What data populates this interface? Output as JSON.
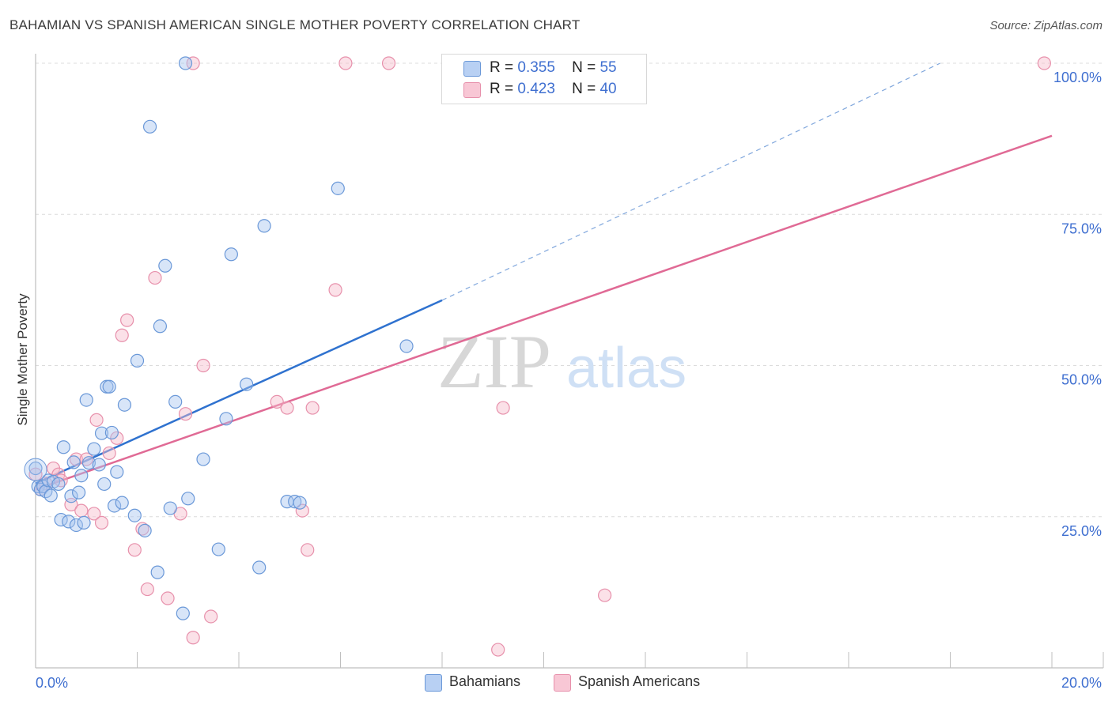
{
  "title": "BAHAMIAN VS SPANISH AMERICAN SINGLE MOTHER POVERTY CORRELATION CHART",
  "source": "Source: ZipAtlas.com",
  "watermark": {
    "zip": "ZIP",
    "atlas": "atlas"
  },
  "legend": {
    "r_label": "R =",
    "n_label": "N =",
    "rows": [
      {
        "r": "0.355",
        "n": "55"
      },
      {
        "r": "0.423",
        "n": "40"
      }
    ]
  },
  "colors": {
    "blue_fill": "#a9c6f0",
    "blue_stroke": "#6a98d8",
    "blue_line": "#2f72cf",
    "pink_fill": "#f6bccd",
    "pink_stroke": "#e790ab",
    "pink_line": "#e06a95",
    "axis_text": "#3f6fd0",
    "grid": "#dcdcdc"
  },
  "chart_data": {
    "type": "scatter",
    "title": "BAHAMIAN VS SPANISH AMERICAN SINGLE MOTHER POVERTY CORRELATION CHART",
    "xlabel": "",
    "ylabel": "Single Mother Poverty",
    "xlim": [
      0,
      20
    ],
    "ylim": [
      0,
      100
    ],
    "x_tick_labels": [
      "0.0%",
      "20.0%"
    ],
    "y_tick_labels": [
      "25.0%",
      "50.0%",
      "75.0%",
      "100.0%"
    ],
    "y_ticks": [
      25,
      50,
      75,
      100
    ],
    "grid": true,
    "legend_position": "top-center",
    "series": [
      {
        "name": "Bahamians",
        "r": 0.355,
        "n": 55,
        "trend": {
          "x0": 0,
          "y0": 30.5,
          "x1": 8.0,
          "y1": 60.8,
          "dashed_to_x": 17.8,
          "dashed_to_y": 100
        },
        "points": [
          [
            0.0,
            33.0
          ],
          [
            0.05,
            30.0
          ],
          [
            0.1,
            29.5
          ],
          [
            0.15,
            30.0
          ],
          [
            0.2,
            29.2
          ],
          [
            0.25,
            31.0
          ],
          [
            0.3,
            28.5
          ],
          [
            0.35,
            30.8
          ],
          [
            0.45,
            30.4
          ],
          [
            0.5,
            24.5
          ],
          [
            0.55,
            36.5
          ],
          [
            0.65,
            24.2
          ],
          [
            0.7,
            28.4
          ],
          [
            0.75,
            34.0
          ],
          [
            0.8,
            23.6
          ],
          [
            0.85,
            29.0
          ],
          [
            0.9,
            31.8
          ],
          [
            0.95,
            24.0
          ],
          [
            1.0,
            44.3
          ],
          [
            1.05,
            33.9
          ],
          [
            1.15,
            36.2
          ],
          [
            1.25,
            33.6
          ],
          [
            1.3,
            38.8
          ],
          [
            1.35,
            30.4
          ],
          [
            1.4,
            46.5
          ],
          [
            1.45,
            46.5
          ],
          [
            1.5,
            38.9
          ],
          [
            1.55,
            26.8
          ],
          [
            1.6,
            32.4
          ],
          [
            1.7,
            27.3
          ],
          [
            1.75,
            43.5
          ],
          [
            1.95,
            25.2
          ],
          [
            2.0,
            50.8
          ],
          [
            2.15,
            22.7
          ],
          [
            2.25,
            89.5
          ],
          [
            2.4,
            15.8
          ],
          [
            2.45,
            56.5
          ],
          [
            2.55,
            66.5
          ],
          [
            2.65,
            26.4
          ],
          [
            2.75,
            44.0
          ],
          [
            2.9,
            9.0
          ],
          [
            2.95,
            100.0
          ],
          [
            3.0,
            28.0
          ],
          [
            3.3,
            34.5
          ],
          [
            3.6,
            19.6
          ],
          [
            3.75,
            41.2
          ],
          [
            3.85,
            68.4
          ],
          [
            4.15,
            46.9
          ],
          [
            4.4,
            16.6
          ],
          [
            4.5,
            73.1
          ],
          [
            4.95,
            27.5
          ],
          [
            5.1,
            27.5
          ],
          [
            5.2,
            27.3
          ],
          [
            5.95,
            79.3
          ],
          [
            7.3,
            53.2
          ]
        ]
      },
      {
        "name": "Spanish Americans",
        "r": 0.423,
        "n": 40,
        "trend": {
          "x0": 0,
          "y0": 29.5,
          "x1": 20.0,
          "y1": 88.0
        },
        "points": [
          [
            0.0,
            32.0
          ],
          [
            0.1,
            29.5
          ],
          [
            0.2,
            30.5
          ],
          [
            0.35,
            33.0
          ],
          [
            0.45,
            32.0
          ],
          [
            0.5,
            31.0
          ],
          [
            0.7,
            27.0
          ],
          [
            0.8,
            34.5
          ],
          [
            0.9,
            26.0
          ],
          [
            1.0,
            34.5
          ],
          [
            1.15,
            25.5
          ],
          [
            1.2,
            41.0
          ],
          [
            1.3,
            24.0
          ],
          [
            1.45,
            35.5
          ],
          [
            1.6,
            38.0
          ],
          [
            1.7,
            55.0
          ],
          [
            1.8,
            57.5
          ],
          [
            1.95,
            19.5
          ],
          [
            2.1,
            23.0
          ],
          [
            2.2,
            13.0
          ],
          [
            2.35,
            64.5
          ],
          [
            2.6,
            11.5
          ],
          [
            2.85,
            25.5
          ],
          [
            2.95,
            42.0
          ],
          [
            3.1,
            5.0
          ],
          [
            3.1,
            100.0
          ],
          [
            3.3,
            50.0
          ],
          [
            3.45,
            8.5
          ],
          [
            4.75,
            44.0
          ],
          [
            4.95,
            43.0
          ],
          [
            5.25,
            26.0
          ],
          [
            5.35,
            19.5
          ],
          [
            5.45,
            43.0
          ],
          [
            5.9,
            62.5
          ],
          [
            6.1,
            100.0
          ],
          [
            6.95,
            100.0
          ],
          [
            9.1,
            3.0
          ],
          [
            9.2,
            43.0
          ],
          [
            11.2,
            12.0
          ],
          [
            19.85,
            100.0
          ]
        ]
      }
    ]
  }
}
